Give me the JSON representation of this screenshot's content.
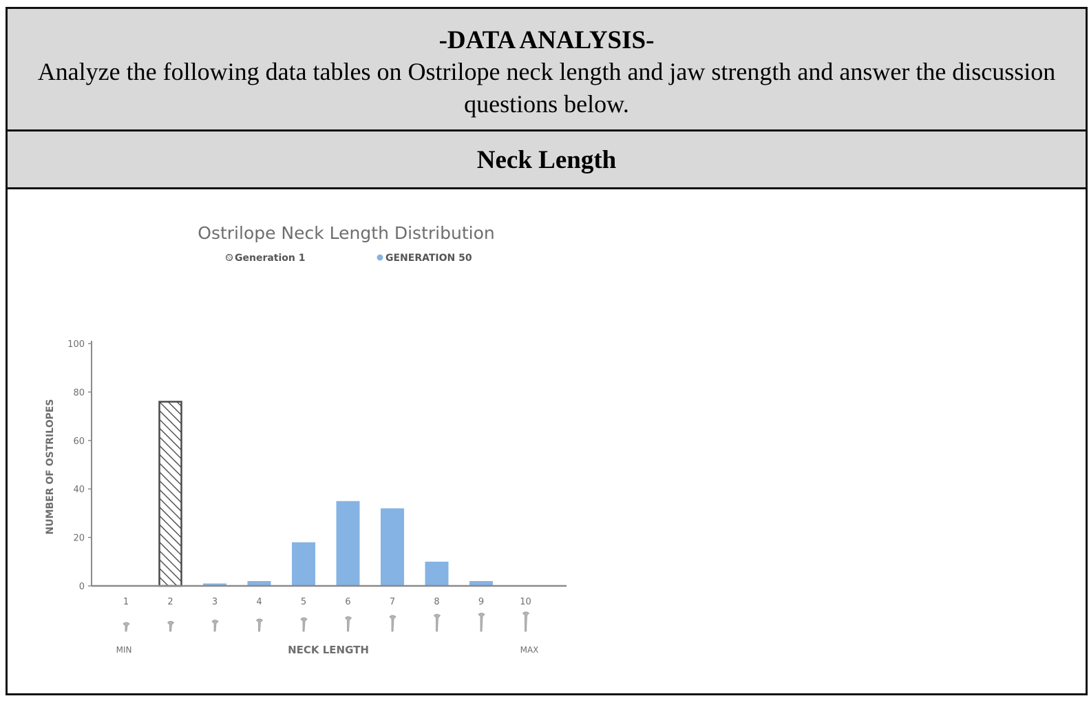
{
  "header": {
    "title": "-DATA ANALYSIS-",
    "instructions": "Analyze the following data tables on Ostrilope neck length and jaw strength and answer the discussion questions below."
  },
  "section": {
    "title": "Neck Length"
  },
  "chart_data": {
    "type": "bar",
    "title": "Ostrilope Neck Length Distribution",
    "xlabel": "NECK LENGTH",
    "ylabel": "NUMBER OF OSTRILOPES",
    "x_min_label": "MIN",
    "x_max_label": "MAX",
    "categories": [
      "1",
      "2",
      "3",
      "4",
      "5",
      "6",
      "7",
      "8",
      "9",
      "10"
    ],
    "ylim": [
      0,
      100
    ],
    "yticks": [
      0,
      20,
      40,
      60,
      80,
      100
    ],
    "legend_position": "top",
    "series": [
      {
        "name": "Generation 1",
        "values": [
          0,
          76,
          0,
          0,
          0,
          0,
          0,
          0,
          0,
          0
        ],
        "pattern": "diagonal-hatch",
        "color": "#555555"
      },
      {
        "name": "GENERATION 50",
        "values": [
          0,
          0,
          1,
          2,
          18,
          35,
          32,
          10,
          2,
          0
        ],
        "color": "#85b3e3"
      }
    ],
    "icon": "ostrilope-head-icon"
  }
}
